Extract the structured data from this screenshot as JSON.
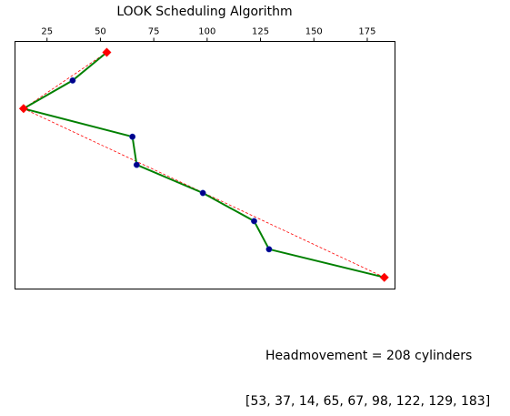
{
  "chart_data": {
    "type": "line",
    "title": "LOOK Scheduling Algorithm",
    "xlabel": "",
    "ylabel": "",
    "xlim": [
      10,
      188
    ],
    "xticks": [
      25,
      50,
      75,
      100,
      125,
      150,
      175
    ],
    "x_axis_position": "top",
    "y_axis_inverted": true,
    "grid": false,
    "series": [
      {
        "kind": "head-path",
        "color": "#008000",
        "marker_color": "#00008b",
        "values": [
          53,
          37,
          14,
          65,
          67,
          98,
          122,
          129,
          183
        ]
      },
      {
        "kind": "direct-jump",
        "color": "#ff0000",
        "style": "dashed",
        "values": [
          53,
          14,
          183
        ]
      }
    ],
    "step_index": [
      0,
      1,
      2,
      3,
      4,
      5,
      6,
      7,
      8
    ],
    "direct_step_index": [
      0,
      2,
      8
    ]
  },
  "captions": {
    "headmovement": "Headmovement = 208 cylinders",
    "sequence": "[53, 37, 14, 65, 67, 98, 122, 129, 183]"
  }
}
